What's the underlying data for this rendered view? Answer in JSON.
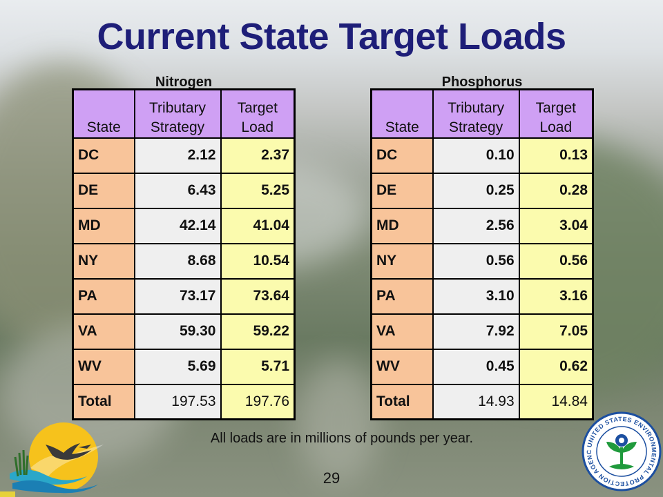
{
  "slide": {
    "title": "Current State Target Loads",
    "note": "All loads are in millions of pounds per year.",
    "page_number": "29"
  },
  "tables": [
    {
      "caption": "Nitrogen",
      "headers": {
        "state": "State",
        "tributary": "Tributary Strategy",
        "target": "Target Load"
      },
      "rows": [
        {
          "state": "DC",
          "tributary": "2.12",
          "target": "2.37"
        },
        {
          "state": "DE",
          "tributary": "6.43",
          "target": "5.25"
        },
        {
          "state": "MD",
          "tributary": "42.14",
          "target": "41.04"
        },
        {
          "state": "NY",
          "tributary": "8.68",
          "target": "10.54"
        },
        {
          "state": "PA",
          "tributary": "73.17",
          "target": "73.64"
        },
        {
          "state": "VA",
          "tributary": "59.30",
          "target": "59.22"
        },
        {
          "state": "WV",
          "tributary": "5.69",
          "target": "5.71"
        },
        {
          "state": "Total",
          "tributary": "197.53",
          "target": "197.76"
        }
      ]
    },
    {
      "caption": "Phosphorus",
      "headers": {
        "state": "State",
        "tributary": "Tributary Strategy",
        "target": "Target Load"
      },
      "rows": [
        {
          "state": "DC",
          "tributary": "0.10",
          "target": "0.13"
        },
        {
          "state": "DE",
          "tributary": "0.25",
          "target": "0.28"
        },
        {
          "state": "MD",
          "tributary": "2.56",
          "target": "3.04"
        },
        {
          "state": "NY",
          "tributary": "0.56",
          "target": "0.56"
        },
        {
          "state": "PA",
          "tributary": "3.10",
          "target": "3.16"
        },
        {
          "state": "VA",
          "tributary": "7.92",
          "target": "7.05"
        },
        {
          "state": "WV",
          "tributary": "0.45",
          "target": "0.62"
        },
        {
          "state": "Total",
          "tributary": "14.93",
          "target": "14.84"
        }
      ]
    }
  ],
  "logos": {
    "left_icon": "bird-over-sunrise-logo",
    "right_icon": "epa-seal-logo",
    "right_text": "UNITED STATES ENVIRONMENTAL PROTECTION AGENCY"
  },
  "colors": {
    "title": "#1e1e78",
    "header_fill": "#cfa0f4",
    "state_fill": "#f8c49a",
    "tributary_fill": "#efefef",
    "target_fill": "#fbfbae",
    "epa_green": "#1f9a3c",
    "epa_blue": "#1c4fa0"
  }
}
